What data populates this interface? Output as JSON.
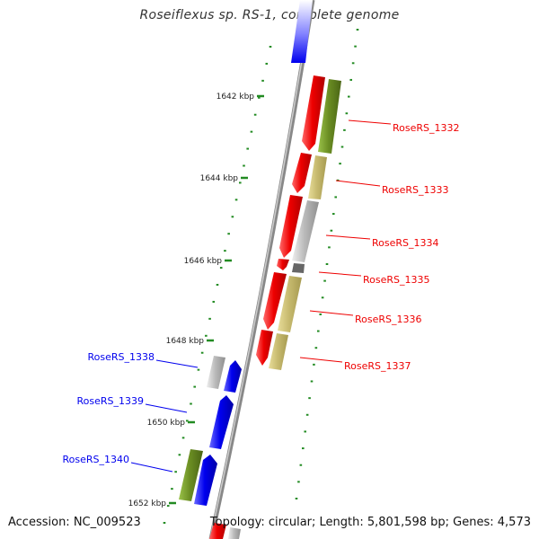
{
  "title": "Roseiflexus sp. RS-1, complete genome",
  "accession_text": "Accession: NC_009523",
  "topology_text": "Topology: circular; Length: 5,801,598 bp; Genes: 4,573",
  "colors": {
    "forward": "#ee0000",
    "reverse": "#0000ee",
    "olive": "#6b8e23",
    "khaki": "#c8bb70",
    "gray": "#bbbbbb",
    "darkgray": "#666666",
    "tick": "#228b22"
  },
  "ticks": [
    {
      "label": "1642 kbp"
    },
    {
      "label": "1644 kbp"
    },
    {
      "label": "1646 kbp"
    },
    {
      "label": "1648 kbp"
    },
    {
      "label": "1650 kbp"
    },
    {
      "label": "1652 kbp"
    }
  ],
  "genes_right": [
    {
      "label": "RoseRS_1332"
    },
    {
      "label": "RoseRS_1333"
    },
    {
      "label": "RoseRS_1334"
    },
    {
      "label": "RoseRS_1335"
    },
    {
      "label": "RoseRS_1336"
    },
    {
      "label": "RoseRS_1337"
    }
  ],
  "genes_left": [
    {
      "label": "RoseRS_1338"
    },
    {
      "label": "RoseRS_1339"
    },
    {
      "label": "RoseRS_1340"
    }
  ]
}
